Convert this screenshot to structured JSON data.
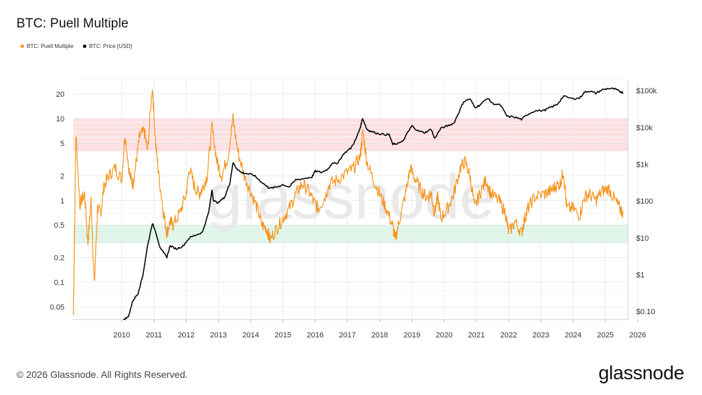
{
  "title": "BTC: Puell Multiple",
  "footer": {
    "copyright": "© 2026 Glassnode. All Rights Reserved.",
    "logo": "glassnode",
    "watermark": "glassnode"
  },
  "colors": {
    "puell": "#f7931a",
    "price": "#000000",
    "red_band": "#fbd9dc",
    "green_band": "#d6f3e3"
  },
  "chart_data": {
    "type": "line",
    "title": "BTC: Puell Multiple",
    "legend": [
      "BTC: Puell Multiple",
      "BTC: Price [USD]"
    ],
    "legend_position": "top-left",
    "x_ticks": [
      "2010",
      "2011",
      "2012",
      "2013",
      "2014",
      "2015",
      "2016",
      "2017",
      "2018",
      "2019",
      "2020",
      "2021",
      "2022",
      "2023",
      "2024",
      "2025",
      "2026"
    ],
    "x_range": [
      2009.0,
      2026.2
    ],
    "y_left": {
      "scale": "log",
      "range": [
        0.035,
        30
      ],
      "ticks": [
        20,
        10,
        5,
        2,
        1,
        0.5,
        0.2,
        0.1,
        0.05
      ],
      "tick_labels": [
        "20",
        "10",
        "5",
        "2",
        "1",
        "0.5",
        "0.2",
        "0.1",
        "0.05"
      ]
    },
    "y_right": {
      "scale": "log",
      "range": [
        0.06,
        200000
      ],
      "ticks": [
        100000,
        10000,
        1000,
        100,
        10,
        1,
        0.1
      ],
      "tick_labels": [
        "$100k",
        "$10k",
        "$1k",
        "$100",
        "$10",
        "$1",
        "$0.10"
      ]
    },
    "bands": [
      {
        "name": "overvalued zone",
        "from": 4,
        "to": 10,
        "color": "red"
      },
      {
        "name": "undervalued zone",
        "from": 0.3,
        "to": 0.5,
        "color": "green"
      }
    ],
    "series": [
      {
        "name": "BTC: Puell Multiple",
        "axis": "left",
        "color": "#f7931a",
        "points": [
          [
            2009.0,
            0.04
          ],
          [
            2009.08,
            6.5
          ],
          [
            2009.2,
            0.9
          ],
          [
            2009.35,
            1.2
          ],
          [
            2009.45,
            0.3
          ],
          [
            2009.55,
            1.0
          ],
          [
            2009.65,
            0.09
          ],
          [
            2009.75,
            0.8
          ],
          [
            2009.85,
            0.7
          ],
          [
            2009.95,
            1.5
          ],
          [
            2010.1,
            2.0
          ],
          [
            2010.3,
            2.5
          ],
          [
            2010.5,
            1.8
          ],
          [
            2010.6,
            6.5
          ],
          [
            2010.75,
            2.0
          ],
          [
            2010.85,
            1.6
          ],
          [
            2010.95,
            3.0
          ],
          [
            2011.05,
            6.0
          ],
          [
            2011.2,
            7.0
          ],
          [
            2011.3,
            4.0
          ],
          [
            2011.45,
            25.0
          ],
          [
            2011.55,
            5.0
          ],
          [
            2011.65,
            2.0
          ],
          [
            2011.8,
            0.7
          ],
          [
            2011.9,
            0.4
          ],
          [
            2012.0,
            0.55
          ],
          [
            2012.1,
            0.5
          ],
          [
            2012.3,
            0.7
          ],
          [
            2012.5,
            1.2
          ],
          [
            2012.6,
            2.5
          ],
          [
            2012.75,
            1.5
          ],
          [
            2012.9,
            1.2
          ],
          [
            2013.0,
            1.4
          ],
          [
            2013.15,
            2.0
          ],
          [
            2013.3,
            8.0
          ],
          [
            2013.45,
            3.0
          ],
          [
            2013.6,
            2.0
          ],
          [
            2013.8,
            3.5
          ],
          [
            2013.95,
            10.0
          ],
          [
            2014.1,
            4.0
          ],
          [
            2014.3,
            2.0
          ],
          [
            2014.5,
            1.3
          ],
          [
            2014.7,
            0.8
          ],
          [
            2014.85,
            0.5
          ],
          [
            2015.0,
            0.45
          ],
          [
            2015.1,
            0.33
          ],
          [
            2015.3,
            0.45
          ],
          [
            2015.5,
            0.6
          ],
          [
            2015.7,
            0.8
          ],
          [
            2015.9,
            1.2
          ],
          [
            2016.1,
            1.6
          ],
          [
            2016.3,
            1.3
          ],
          [
            2016.5,
            0.9
          ],
          [
            2016.6,
            0.8
          ],
          [
            2016.8,
            1.1
          ],
          [
            2016.95,
            1.6
          ],
          [
            2017.2,
            1.8
          ],
          [
            2017.5,
            2.2
          ],
          [
            2017.7,
            2.5
          ],
          [
            2017.9,
            3.5
          ],
          [
            2017.98,
            7.0
          ],
          [
            2018.1,
            3.0
          ],
          [
            2018.3,
            1.8
          ],
          [
            2018.5,
            1.2
          ],
          [
            2018.7,
            0.8
          ],
          [
            2018.9,
            0.5
          ],
          [
            2018.98,
            0.33
          ],
          [
            2019.1,
            0.55
          ],
          [
            2019.3,
            1.2
          ],
          [
            2019.45,
            2.5
          ],
          [
            2019.6,
            1.8
          ],
          [
            2019.8,
            1.3
          ],
          [
            2019.95,
            1.1
          ],
          [
            2020.1,
            1.2
          ],
          [
            2020.2,
            0.7
          ],
          [
            2020.3,
            1.1
          ],
          [
            2020.4,
            0.6
          ],
          [
            2020.6,
            0.8
          ],
          [
            2020.8,
            1.2
          ],
          [
            2021.0,
            2.5
          ],
          [
            2021.15,
            3.0
          ],
          [
            2021.3,
            2.0
          ],
          [
            2021.45,
            0.8
          ],
          [
            2021.6,
            1.2
          ],
          [
            2021.8,
            1.8
          ],
          [
            2021.95,
            1.2
          ],
          [
            2022.2,
            1.0
          ],
          [
            2022.4,
            0.7
          ],
          [
            2022.5,
            0.4
          ],
          [
            2022.7,
            0.55
          ],
          [
            2022.9,
            0.4
          ],
          [
            2023.0,
            0.6
          ],
          [
            2023.1,
            0.8
          ],
          [
            2023.3,
            1.1
          ],
          [
            2023.6,
            1.2
          ],
          [
            2023.8,
            1.3
          ],
          [
            2023.95,
            1.5
          ],
          [
            2024.1,
            1.6
          ],
          [
            2024.2,
            2.3
          ],
          [
            2024.3,
            0.8
          ],
          [
            2024.5,
            0.8
          ],
          [
            2024.7,
            0.65
          ],
          [
            2024.85,
            1.1
          ],
          [
            2025.0,
            1.2
          ],
          [
            2025.2,
            1.0
          ],
          [
            2025.4,
            1.3
          ],
          [
            2025.6,
            1.4
          ],
          [
            2025.8,
            1.0
          ],
          [
            2025.95,
            0.8
          ],
          [
            2026.05,
            0.7
          ]
        ]
      },
      {
        "name": "BTC: Price [USD]",
        "axis": "right",
        "color": "#000000",
        "points": [
          [
            2010.55,
            0.06
          ],
          [
            2010.7,
            0.07
          ],
          [
            2010.85,
            0.2
          ],
          [
            2011.0,
            0.3
          ],
          [
            2011.15,
            0.9
          ],
          [
            2011.3,
            6.0
          ],
          [
            2011.45,
            25.0
          ],
          [
            2011.55,
            15.0
          ],
          [
            2011.7,
            5.0
          ],
          [
            2011.9,
            3.0
          ],
          [
            2012.0,
            6.0
          ],
          [
            2012.2,
            5.0
          ],
          [
            2012.4,
            6.0
          ],
          [
            2012.6,
            10.0
          ],
          [
            2012.8,
            12.0
          ],
          [
            2013.0,
            14.0
          ],
          [
            2013.2,
            50.0
          ],
          [
            2013.3,
            200.0
          ],
          [
            2013.35,
            100.0
          ],
          [
            2013.5,
            90.0
          ],
          [
            2013.7,
            130.0
          ],
          [
            2013.85,
            300.0
          ],
          [
            2013.95,
            1100.0
          ],
          [
            2014.05,
            800.0
          ],
          [
            2014.2,
            600.0
          ],
          [
            2014.4,
            550.0
          ],
          [
            2014.6,
            500.0
          ],
          [
            2014.8,
            350.0
          ],
          [
            2015.0,
            250.0
          ],
          [
            2015.1,
            220.0
          ],
          [
            2015.3,
            240.0
          ],
          [
            2015.5,
            280.0
          ],
          [
            2015.7,
            240.0
          ],
          [
            2015.9,
            380.0
          ],
          [
            2016.1,
            400.0
          ],
          [
            2016.4,
            450.0
          ],
          [
            2016.5,
            650.0
          ],
          [
            2016.7,
            600.0
          ],
          [
            2016.9,
            750.0
          ],
          [
            2017.0,
            1000.0
          ],
          [
            2017.2,
            1100.0
          ],
          [
            2017.4,
            2000.0
          ],
          [
            2017.6,
            2700.0
          ],
          [
            2017.75,
            4500.0
          ],
          [
            2017.9,
            10000.0
          ],
          [
            2017.97,
            18000.0
          ],
          [
            2018.1,
            9000.0
          ],
          [
            2018.2,
            8000.0
          ],
          [
            2018.4,
            7000.0
          ],
          [
            2018.6,
            6500.0
          ],
          [
            2018.8,
            6300.0
          ],
          [
            2018.9,
            3500.0
          ],
          [
            2019.0,
            3600.0
          ],
          [
            2019.2,
            4000.0
          ],
          [
            2019.4,
            8000.0
          ],
          [
            2019.5,
            11000.0
          ],
          [
            2019.7,
            8000.0
          ],
          [
            2019.9,
            7200.0
          ],
          [
            2020.1,
            9000.0
          ],
          [
            2020.2,
            5000.0
          ],
          [
            2020.4,
            9500.0
          ],
          [
            2020.6,
            11000.0
          ],
          [
            2020.8,
            13000.0
          ],
          [
            2020.95,
            25000.0
          ],
          [
            2021.1,
            50000.0
          ],
          [
            2021.3,
            60000.0
          ],
          [
            2021.45,
            35000.0
          ],
          [
            2021.6,
            40000.0
          ],
          [
            2021.85,
            63000.0
          ],
          [
            2022.0,
            45000.0
          ],
          [
            2022.25,
            40000.0
          ],
          [
            2022.45,
            20000.0
          ],
          [
            2022.7,
            19000.0
          ],
          [
            2022.9,
            16500.0
          ],
          [
            2023.1,
            23000.0
          ],
          [
            2023.3,
            28000.0
          ],
          [
            2023.6,
            29000.0
          ],
          [
            2023.8,
            35000.0
          ],
          [
            2024.0,
            42000.0
          ],
          [
            2024.2,
            70000.0
          ],
          [
            2024.5,
            60000.0
          ],
          [
            2024.7,
            63000.0
          ],
          [
            2024.85,
            90000.0
          ],
          [
            2025.0,
            98000.0
          ],
          [
            2025.2,
            85000.0
          ],
          [
            2025.4,
            105000.0
          ],
          [
            2025.6,
            115000.0
          ],
          [
            2025.8,
            110000.0
          ],
          [
            2025.95,
            95000.0
          ],
          [
            2026.05,
            88000.0
          ]
        ]
      }
    ]
  }
}
